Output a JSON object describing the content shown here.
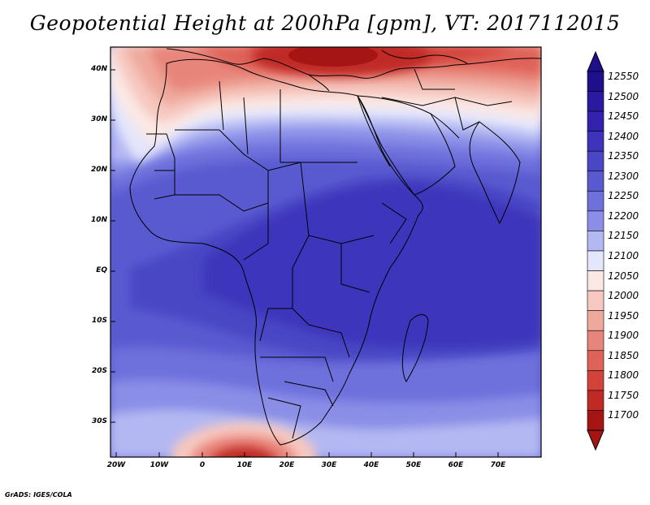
{
  "title": "Geopotential Height at 200hPa [gpm], VT: 2017112015",
  "credit": "GrADS: IGES/COLA",
  "map": {
    "lat_labels": [
      "40N",
      "30N",
      "20N",
      "10N",
      "EQ",
      "10S",
      "20S",
      "30S"
    ],
    "lon_labels": [
      "20W",
      "10W",
      "0",
      "10E",
      "20E",
      "30E",
      "40E",
      "50E",
      "60E",
      "70E"
    ]
  },
  "colorbar": {
    "levels": [
      "12550",
      "12500",
      "12450",
      "12400",
      "12350",
      "12300",
      "12250",
      "12200",
      "12150",
      "12100",
      "12050",
      "12000",
      "11950",
      "11900",
      "11850",
      "11800",
      "11750",
      "11700"
    ],
    "colors": [
      "#1e0f8c",
      "#2a1aa0",
      "#3322b0",
      "#3e34bc",
      "#4a46c4",
      "#5a5ad0",
      "#6e70dc",
      "#8a8ee6",
      "#b4b8f2",
      "#e4e6fb",
      "#fbe8e4",
      "#f6c8bf",
      "#efa89c",
      "#e8857a",
      "#df6258",
      "#d2433b",
      "#c02a25",
      "#a51513"
    ]
  }
}
